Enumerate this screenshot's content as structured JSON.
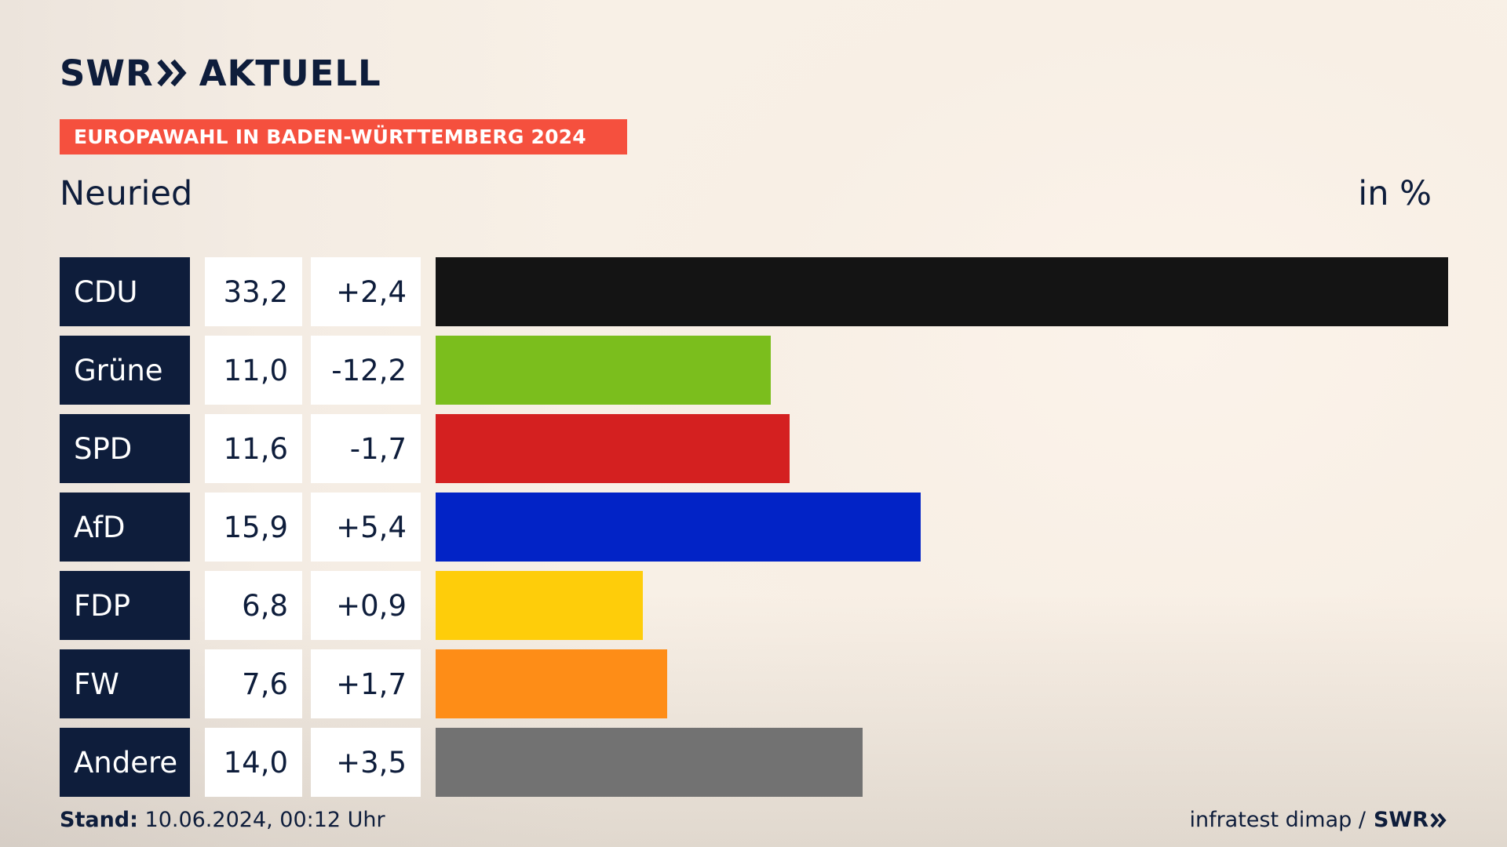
{
  "brand": {
    "logo_text_left": "SWR",
    "logo_text_right": "AKTUELL",
    "chevron_icon": "double-chevron-right-icon",
    "text_color": "#0e1d3b"
  },
  "banner": {
    "text": "EUROPAWAHL IN BADEN-WÜRTTEMBERG 2024",
    "color": "#f5503e"
  },
  "header": {
    "region": "Neuried",
    "unit": "in %"
  },
  "chart_data": {
    "type": "bar",
    "orientation": "horizontal",
    "title": "Neuried",
    "unit": "in %",
    "xlim": [
      0,
      33.2
    ],
    "categories": [
      "CDU",
      "Grüne",
      "SPD",
      "AfD",
      "FDP",
      "FW",
      "Andere"
    ],
    "values": [
      33.2,
      11.0,
      11.6,
      15.9,
      6.8,
      7.6,
      14.0
    ],
    "value_labels": [
      "33,2",
      "11,0",
      "11,6",
      "15,9",
      "6,8",
      "7,6",
      "14,0"
    ],
    "diff_labels": [
      "+2,4",
      "-12,2",
      "-1,7",
      "+5,4",
      "+0,9",
      "+1,7",
      "+3,5"
    ],
    "colors": [
      "#141414",
      "#7bbe1d",
      "#d42020",
      "#0223c6",
      "#fecd0a",
      "#fe8d17",
      "#727272"
    ]
  },
  "footer": {
    "stand_label": "Stand:",
    "stand_value": "10.06.2024, 00:12 Uhr",
    "source": "infratest dimap /",
    "source_logo": "SWR"
  }
}
